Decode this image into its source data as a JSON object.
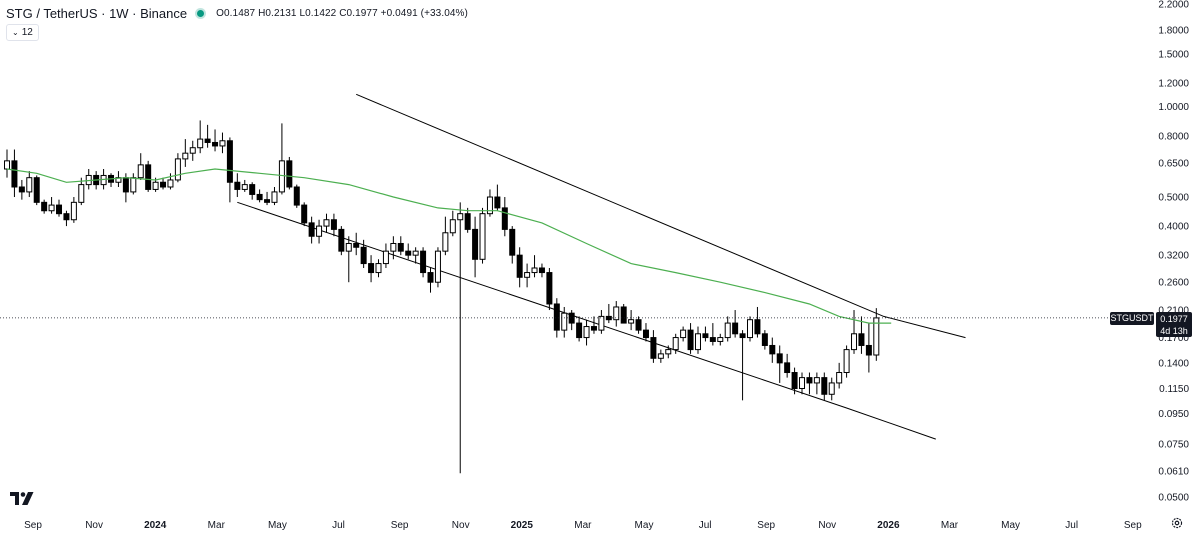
{
  "header": {
    "title": "STG / TetherUS · 1W · Binance",
    "ohlc": {
      "open": "O0.1487",
      "high": "H0.2131",
      "low": "L0.1422",
      "close": "C0.1977",
      "change": "+0.0491 (+33.04%)"
    },
    "status_color": "#089981"
  },
  "indicator": {
    "label": "12",
    "icon": "chevron-down-icon"
  },
  "symbol_label": "STGUSDT",
  "last_price": "0.1977",
  "countdown": "4d 13h",
  "logo_icon": "tradingview-logo-icon",
  "settings_icon": "gear-icon",
  "colors": {
    "up_candle": "#ffffff",
    "down_candle": "#000000",
    "candle_outline": "#000000",
    "ma_line": "#4caf50",
    "channel_line": "#000000",
    "tag_bg": "#131722"
  },
  "chart_data": {
    "type": "candlestick",
    "scale": "log",
    "ylim": [
      0.05,
      2.2
    ],
    "y_ticks": [
      "2.2000",
      "1.8000",
      "1.5000",
      "1.2000",
      "1.0000",
      "0.8000",
      "0.6500",
      "0.5000",
      "0.4000",
      "0.3200",
      "0.2600",
      "0.2100",
      "0.1700",
      "0.1400",
      "0.1150",
      "0.0950",
      "0.0750",
      "0.0610",
      "0.0500"
    ],
    "x_ticks": [
      {
        "label": "Sep",
        "bold": false
      },
      {
        "label": "Nov",
        "bold": false
      },
      {
        "label": "2024",
        "bold": true
      },
      {
        "label": "Mar",
        "bold": false
      },
      {
        "label": "May",
        "bold": false
      },
      {
        "label": "Jul",
        "bold": false
      },
      {
        "label": "Sep",
        "bold": false
      },
      {
        "label": "Nov",
        "bold": false
      },
      {
        "label": "2025",
        "bold": true
      },
      {
        "label": "Mar",
        "bold": false
      },
      {
        "label": "May",
        "bold": false
      },
      {
        "label": "Jul",
        "bold": false
      },
      {
        "label": "Sep",
        "bold": false
      },
      {
        "label": "Nov",
        "bold": false
      },
      {
        "label": "2026",
        "bold": true
      },
      {
        "label": "Mar",
        "bold": false
      },
      {
        "label": "May",
        "bold": false
      },
      {
        "label": "Jul",
        "bold": false
      },
      {
        "label": "Sep",
        "bold": false
      }
    ],
    "x_start": "2023-09-04",
    "x_end": "2026-09-28",
    "candles": [
      {
        "o": 0.62,
        "h": 0.72,
        "l": 0.58,
        "c": 0.66
      },
      {
        "o": 0.66,
        "h": 0.72,
        "l": 0.5,
        "c": 0.54
      },
      {
        "o": 0.54,
        "h": 0.57,
        "l": 0.49,
        "c": 0.52
      },
      {
        "o": 0.52,
        "h": 0.61,
        "l": 0.5,
        "c": 0.58
      },
      {
        "o": 0.58,
        "h": 0.59,
        "l": 0.47,
        "c": 0.48
      },
      {
        "o": 0.48,
        "h": 0.49,
        "l": 0.44,
        "c": 0.45
      },
      {
        "o": 0.45,
        "h": 0.5,
        "l": 0.44,
        "c": 0.47
      },
      {
        "o": 0.47,
        "h": 0.49,
        "l": 0.43,
        "c": 0.44
      },
      {
        "o": 0.44,
        "h": 0.45,
        "l": 0.4,
        "c": 0.42
      },
      {
        "o": 0.42,
        "h": 0.5,
        "l": 0.41,
        "c": 0.48
      },
      {
        "o": 0.48,
        "h": 0.58,
        "l": 0.47,
        "c": 0.55
      },
      {
        "o": 0.55,
        "h": 0.62,
        "l": 0.53,
        "c": 0.59
      },
      {
        "o": 0.59,
        "h": 0.61,
        "l": 0.53,
        "c": 0.55
      },
      {
        "o": 0.55,
        "h": 0.62,
        "l": 0.53,
        "c": 0.59
      },
      {
        "o": 0.59,
        "h": 0.6,
        "l": 0.54,
        "c": 0.56
      },
      {
        "o": 0.56,
        "h": 0.61,
        "l": 0.54,
        "c": 0.58
      },
      {
        "o": 0.58,
        "h": 0.6,
        "l": 0.48,
        "c": 0.52
      },
      {
        "o": 0.52,
        "h": 0.6,
        "l": 0.51,
        "c": 0.58
      },
      {
        "o": 0.58,
        "h": 0.7,
        "l": 0.57,
        "c": 0.64
      },
      {
        "o": 0.64,
        "h": 0.66,
        "l": 0.52,
        "c": 0.53
      },
      {
        "o": 0.53,
        "h": 0.58,
        "l": 0.52,
        "c": 0.56
      },
      {
        "o": 0.56,
        "h": 0.58,
        "l": 0.53,
        "c": 0.54
      },
      {
        "o": 0.54,
        "h": 0.6,
        "l": 0.53,
        "c": 0.57
      },
      {
        "o": 0.57,
        "h": 0.7,
        "l": 0.56,
        "c": 0.67
      },
      {
        "o": 0.67,
        "h": 0.78,
        "l": 0.63,
        "c": 0.7
      },
      {
        "o": 0.7,
        "h": 0.77,
        "l": 0.66,
        "c": 0.73
      },
      {
        "o": 0.73,
        "h": 0.9,
        "l": 0.7,
        "c": 0.78
      },
      {
        "o": 0.78,
        "h": 0.87,
        "l": 0.73,
        "c": 0.76
      },
      {
        "o": 0.76,
        "h": 0.84,
        "l": 0.71,
        "c": 0.74
      },
      {
        "o": 0.74,
        "h": 0.82,
        "l": 0.7,
        "c": 0.77
      },
      {
        "o": 0.77,
        "h": 0.79,
        "l": 0.48,
        "c": 0.56
      },
      {
        "o": 0.56,
        "h": 0.6,
        "l": 0.5,
        "c": 0.53
      },
      {
        "o": 0.53,
        "h": 0.57,
        "l": 0.52,
        "c": 0.55
      },
      {
        "o": 0.55,
        "h": 0.56,
        "l": 0.49,
        "c": 0.51
      },
      {
        "o": 0.51,
        "h": 0.53,
        "l": 0.48,
        "c": 0.49
      },
      {
        "o": 0.49,
        "h": 0.52,
        "l": 0.47,
        "c": 0.48
      },
      {
        "o": 0.48,
        "h": 0.54,
        "l": 0.47,
        "c": 0.52
      },
      {
        "o": 0.52,
        "h": 0.88,
        "l": 0.51,
        "c": 0.66
      },
      {
        "o": 0.66,
        "h": 0.68,
        "l": 0.53,
        "c": 0.54
      },
      {
        "o": 0.54,
        "h": 0.55,
        "l": 0.46,
        "c": 0.47
      },
      {
        "o": 0.47,
        "h": 0.48,
        "l": 0.4,
        "c": 0.41
      },
      {
        "o": 0.41,
        "h": 0.43,
        "l": 0.35,
        "c": 0.37
      },
      {
        "o": 0.37,
        "h": 0.42,
        "l": 0.35,
        "c": 0.4
      },
      {
        "o": 0.4,
        "h": 0.44,
        "l": 0.38,
        "c": 0.42
      },
      {
        "o": 0.42,
        "h": 0.44,
        "l": 0.37,
        "c": 0.39
      },
      {
        "o": 0.39,
        "h": 0.4,
        "l": 0.32,
        "c": 0.33
      },
      {
        "o": 0.33,
        "h": 0.37,
        "l": 0.26,
        "c": 0.35
      },
      {
        "o": 0.35,
        "h": 0.38,
        "l": 0.32,
        "c": 0.34
      },
      {
        "o": 0.34,
        "h": 0.36,
        "l": 0.29,
        "c": 0.3
      },
      {
        "o": 0.3,
        "h": 0.32,
        "l": 0.26,
        "c": 0.28
      },
      {
        "o": 0.28,
        "h": 0.31,
        "l": 0.27,
        "c": 0.3
      },
      {
        "o": 0.3,
        "h": 0.35,
        "l": 0.29,
        "c": 0.33
      },
      {
        "o": 0.33,
        "h": 0.37,
        "l": 0.31,
        "c": 0.35
      },
      {
        "o": 0.35,
        "h": 0.37,
        "l": 0.32,
        "c": 0.33
      },
      {
        "o": 0.33,
        "h": 0.35,
        "l": 0.31,
        "c": 0.32
      },
      {
        "o": 0.32,
        "h": 0.34,
        "l": 0.3,
        "c": 0.33
      },
      {
        "o": 0.33,
        "h": 0.34,
        "l": 0.27,
        "c": 0.28
      },
      {
        "o": 0.28,
        "h": 0.29,
        "l": 0.24,
        "c": 0.26
      },
      {
        "o": 0.26,
        "h": 0.34,
        "l": 0.25,
        "c": 0.33
      },
      {
        "o": 0.33,
        "h": 0.43,
        "l": 0.32,
        "c": 0.38
      },
      {
        "o": 0.38,
        "h": 0.45,
        "l": 0.37,
        "c": 0.42
      },
      {
        "o": 0.42,
        "h": 0.48,
        "l": 0.06,
        "c": 0.44
      },
      {
        "o": 0.44,
        "h": 0.46,
        "l": 0.38,
        "c": 0.39
      },
      {
        "o": 0.39,
        "h": 0.43,
        "l": 0.27,
        "c": 0.31
      },
      {
        "o": 0.31,
        "h": 0.46,
        "l": 0.3,
        "c": 0.44
      },
      {
        "o": 0.44,
        "h": 0.53,
        "l": 0.43,
        "c": 0.5
      },
      {
        "o": 0.5,
        "h": 0.55,
        "l": 0.45,
        "c": 0.46
      },
      {
        "o": 0.46,
        "h": 0.5,
        "l": 0.37,
        "c": 0.39
      },
      {
        "o": 0.39,
        "h": 0.4,
        "l": 0.3,
        "c": 0.32
      },
      {
        "o": 0.32,
        "h": 0.34,
        "l": 0.25,
        "c": 0.27
      },
      {
        "o": 0.27,
        "h": 0.3,
        "l": 0.25,
        "c": 0.28
      },
      {
        "o": 0.28,
        "h": 0.32,
        "l": 0.27,
        "c": 0.29
      },
      {
        "o": 0.29,
        "h": 0.3,
        "l": 0.27,
        "c": 0.28
      },
      {
        "o": 0.28,
        "h": 0.29,
        "l": 0.21,
        "c": 0.22
      },
      {
        "o": 0.22,
        "h": 0.23,
        "l": 0.17,
        "c": 0.18
      },
      {
        "o": 0.18,
        "h": 0.215,
        "l": 0.17,
        "c": 0.205
      },
      {
        "o": 0.205,
        "h": 0.21,
        "l": 0.18,
        "c": 0.19
      },
      {
        "o": 0.19,
        "h": 0.2,
        "l": 0.165,
        "c": 0.17
      },
      {
        "o": 0.17,
        "h": 0.195,
        "l": 0.16,
        "c": 0.185
      },
      {
        "o": 0.185,
        "h": 0.2,
        "l": 0.175,
        "c": 0.18
      },
      {
        "o": 0.18,
        "h": 0.21,
        "l": 0.175,
        "c": 0.2
      },
      {
        "o": 0.2,
        "h": 0.22,
        "l": 0.19,
        "c": 0.195
      },
      {
        "o": 0.195,
        "h": 0.225,
        "l": 0.185,
        "c": 0.215
      },
      {
        "o": 0.215,
        "h": 0.22,
        "l": 0.19,
        "c": 0.19
      },
      {
        "o": 0.19,
        "h": 0.21,
        "l": 0.18,
        "c": 0.195
      },
      {
        "o": 0.195,
        "h": 0.2,
        "l": 0.175,
        "c": 0.18
      },
      {
        "o": 0.18,
        "h": 0.19,
        "l": 0.165,
        "c": 0.17
      },
      {
        "o": 0.17,
        "h": 0.18,
        "l": 0.14,
        "c": 0.145
      },
      {
        "o": 0.145,
        "h": 0.155,
        "l": 0.14,
        "c": 0.15
      },
      {
        "o": 0.15,
        "h": 0.16,
        "l": 0.145,
        "c": 0.155
      },
      {
        "o": 0.155,
        "h": 0.175,
        "l": 0.15,
        "c": 0.17
      },
      {
        "o": 0.17,
        "h": 0.185,
        "l": 0.165,
        "c": 0.18
      },
      {
        "o": 0.18,
        "h": 0.19,
        "l": 0.15,
        "c": 0.155
      },
      {
        "o": 0.155,
        "h": 0.185,
        "l": 0.15,
        "c": 0.175
      },
      {
        "o": 0.175,
        "h": 0.185,
        "l": 0.165,
        "c": 0.17
      },
      {
        "o": 0.17,
        "h": 0.19,
        "l": 0.16,
        "c": 0.165
      },
      {
        "o": 0.165,
        "h": 0.175,
        "l": 0.16,
        "c": 0.17
      },
      {
        "o": 0.17,
        "h": 0.2,
        "l": 0.165,
        "c": 0.19
      },
      {
        "o": 0.19,
        "h": 0.21,
        "l": 0.17,
        "c": 0.175
      },
      {
        "o": 0.175,
        "h": 0.18,
        "l": 0.105,
        "c": 0.17
      },
      {
        "o": 0.17,
        "h": 0.2,
        "l": 0.165,
        "c": 0.195
      },
      {
        "o": 0.195,
        "h": 0.215,
        "l": 0.17,
        "c": 0.175
      },
      {
        "o": 0.175,
        "h": 0.18,
        "l": 0.155,
        "c": 0.16
      },
      {
        "o": 0.16,
        "h": 0.17,
        "l": 0.14,
        "c": 0.15
      },
      {
        "o": 0.15,
        "h": 0.16,
        "l": 0.12,
        "c": 0.14
      },
      {
        "o": 0.14,
        "h": 0.15,
        "l": 0.125,
        "c": 0.13
      },
      {
        "o": 0.13,
        "h": 0.135,
        "l": 0.11,
        "c": 0.115
      },
      {
        "o": 0.115,
        "h": 0.13,
        "l": 0.11,
        "c": 0.125
      },
      {
        "o": 0.125,
        "h": 0.13,
        "l": 0.11,
        "c": 0.12
      },
      {
        "o": 0.12,
        "h": 0.13,
        "l": 0.11,
        "c": 0.125
      },
      {
        "o": 0.125,
        "h": 0.13,
        "l": 0.105,
        "c": 0.11
      },
      {
        "o": 0.11,
        "h": 0.125,
        "l": 0.105,
        "c": 0.12
      },
      {
        "o": 0.12,
        "h": 0.14,
        "l": 0.115,
        "c": 0.13
      },
      {
        "o": 0.13,
        "h": 0.16,
        "l": 0.125,
        "c": 0.155
      },
      {
        "o": 0.155,
        "h": 0.21,
        "l": 0.15,
        "c": 0.175
      },
      {
        "o": 0.175,
        "h": 0.2,
        "l": 0.15,
        "c": 0.16
      },
      {
        "o": 0.16,
        "h": 0.19,
        "l": 0.13,
        "c": 0.1487
      },
      {
        "o": 0.1487,
        "h": 0.2131,
        "l": 0.1422,
        "c": 0.1977
      }
    ],
    "ma": [
      [
        0,
        0.62
      ],
      [
        4,
        0.6
      ],
      [
        8,
        0.56
      ],
      [
        12,
        0.57
      ],
      [
        16,
        0.58
      ],
      [
        20,
        0.57
      ],
      [
        24,
        0.6
      ],
      [
        28,
        0.62
      ],
      [
        34,
        0.6
      ],
      [
        40,
        0.58
      ],
      [
        46,
        0.55
      ],
      [
        52,
        0.5
      ],
      [
        58,
        0.46
      ],
      [
        62,
        0.45
      ],
      [
        66,
        0.45
      ],
      [
        72,
        0.41
      ],
      [
        78,
        0.35
      ],
      [
        84,
        0.3
      ],
      [
        90,
        0.28
      ],
      [
        96,
        0.26
      ],
      [
        102,
        0.24
      ],
      [
        108,
        0.22
      ],
      [
        112,
        0.2
      ],
      [
        116,
        0.19
      ],
      [
        119,
        0.19
      ]
    ],
    "channel_upper": [
      [
        47,
        1.1
      ],
      [
        118,
        0.2
      ],
      [
        129,
        0.17
      ]
    ],
    "channel_lower": [
      [
        31,
        0.48
      ],
      [
        113,
        0.099
      ],
      [
        125,
        0.078
      ]
    ]
  }
}
